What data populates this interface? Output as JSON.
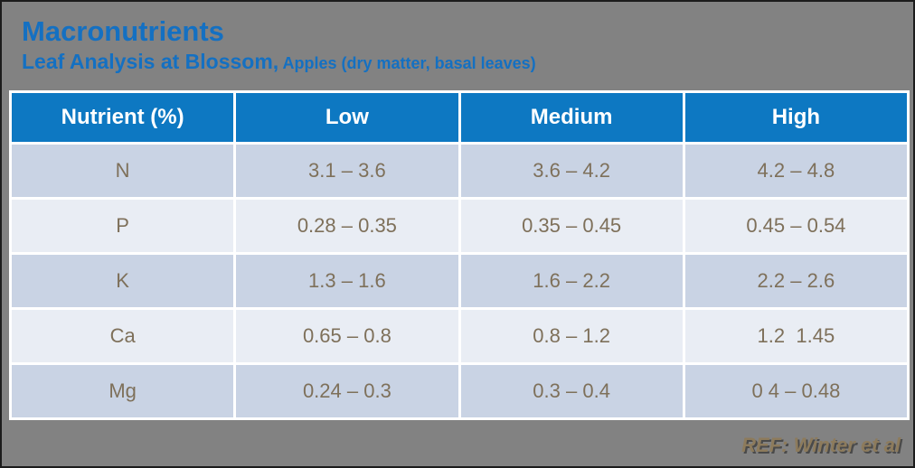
{
  "slide": {
    "title": "Macronutrients",
    "subtitle": "Leaf Analysis at Blossom,",
    "subtitle_detail": " Apples (dry matter, basal leaves)",
    "reference": "REF: Winter et al"
  },
  "table": {
    "headers": [
      "Nutrient (%)",
      "Low",
      "Medium",
      "High"
    ],
    "rows": [
      [
        "N",
        "3.1 – 3.6",
        "3.6 – 4.2",
        "4.2 – 4.8"
      ],
      [
        "P",
        "0.28 – 0.35",
        "0.35 – 0.45",
        "0.45 – 0.54"
      ],
      [
        "K",
        "1.3 – 1.6",
        "1.6 – 2.2",
        "2.2 – 2.6"
      ],
      [
        "Ca",
        "0.65 – 0.8",
        "0.8 – 1.2",
        "1.2  1.45"
      ],
      [
        "Mg",
        "0.24 – 0.3",
        "0.3 – 0.4",
        "0 4 – 0.48"
      ]
    ]
  },
  "colors": {
    "background": "#828282",
    "title_blue": "#1470c2",
    "header_blue": "#0d78c2",
    "row_dark": "#c9d3e4",
    "row_light": "#e9edf4",
    "cell_text": "#7e705a",
    "reference_text": "#8d7b5c",
    "grid_white": "#ffffff"
  }
}
